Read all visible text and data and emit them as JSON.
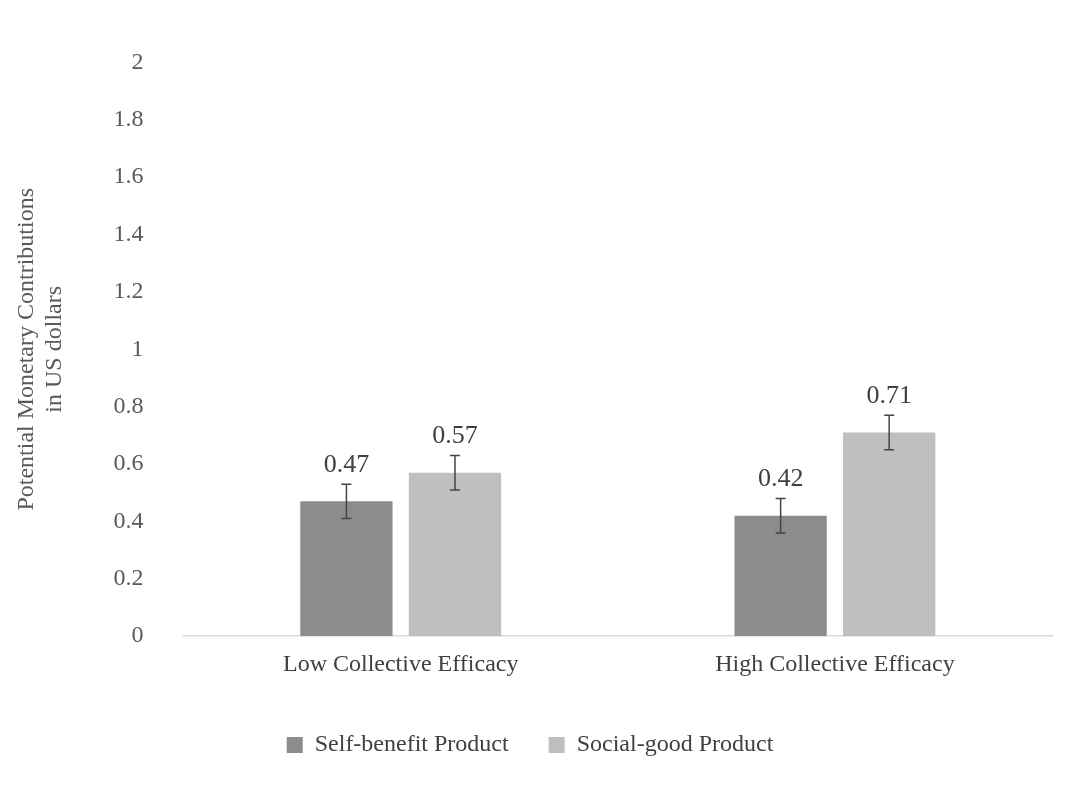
{
  "chart_data": {
    "type": "bar",
    "ylabel": "Potential Monetary Contributions\nin US dollars",
    "categories": [
      "Low Collective Efficacy",
      "High Collective Efficacy"
    ],
    "series": [
      {
        "name": "Self-benefit Product",
        "color": "#8c8c8c",
        "values": [
          0.47,
          0.42
        ],
        "errors": [
          0.06,
          0.06
        ]
      },
      {
        "name": "Social-good Product",
        "color": "#bfbfbf",
        "values": [
          0.57,
          0.71
        ],
        "errors": [
          0.06,
          0.06
        ]
      }
    ],
    "ylim": [
      0,
      2
    ],
    "yticks": [
      0,
      0.2,
      0.4,
      0.6,
      0.8,
      1,
      1.2,
      1.4,
      1.6,
      1.8,
      2
    ],
    "grid": false,
    "legend": "bottom",
    "data_labels": true
  }
}
